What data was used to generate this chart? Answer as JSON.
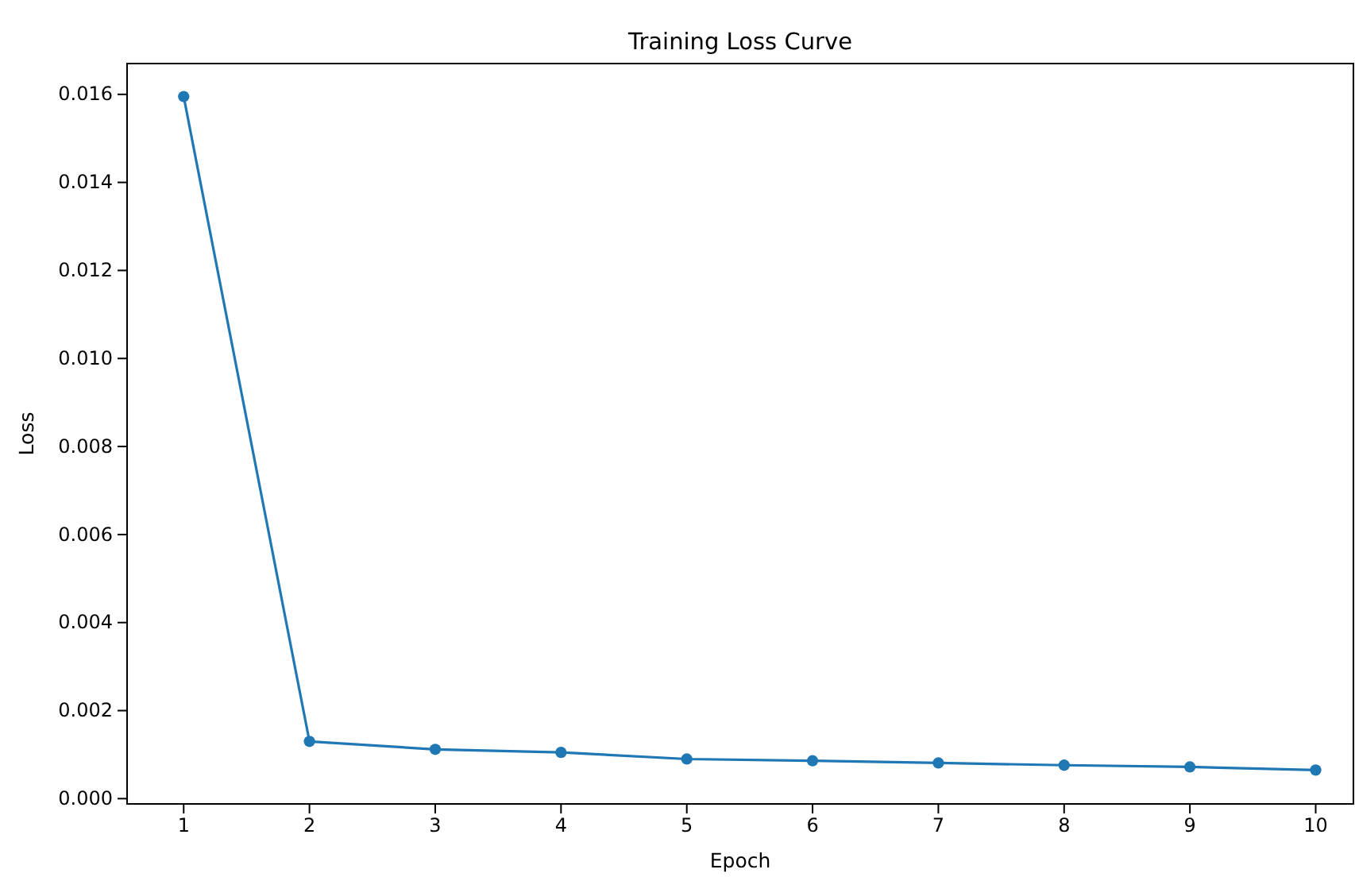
{
  "chart_data": {
    "type": "line",
    "title": "Training Loss Curve",
    "xlabel": "Epoch",
    "ylabel": "Loss",
    "x": [
      1,
      2,
      3,
      4,
      5,
      6,
      7,
      8,
      9,
      10
    ],
    "series": [
      {
        "color": "#1f77b4",
        "values": [
          0.01595,
          0.0013,
          0.00112,
          0.00105,
          0.0009,
          0.00086,
          0.00081,
          0.00076,
          0.00072,
          0.00065
        ]
      }
    ],
    "xlim": [
      0.55,
      10.3
    ],
    "xticks": [
      1,
      2,
      3,
      4,
      5,
      6,
      7,
      8,
      9,
      10
    ],
    "ylim": [
      -0.00012,
      0.0167
    ],
    "yticks": [
      {
        "value": 0,
        "label": "0.000"
      },
      {
        "value": 0.002,
        "label": "0.002"
      },
      {
        "value": 0.004,
        "label": "0.004"
      },
      {
        "value": 0.006,
        "label": "0.006"
      },
      {
        "value": 0.008,
        "label": "0.008"
      },
      {
        "value": 0.01,
        "label": "0.010"
      },
      {
        "value": 0.012,
        "label": "0.012"
      },
      {
        "value": 0.014,
        "label": "0.014"
      },
      {
        "value": 0.016,
        "label": "0.016"
      }
    ],
    "marker": "circle",
    "line_style": "solid",
    "grid": false
  }
}
